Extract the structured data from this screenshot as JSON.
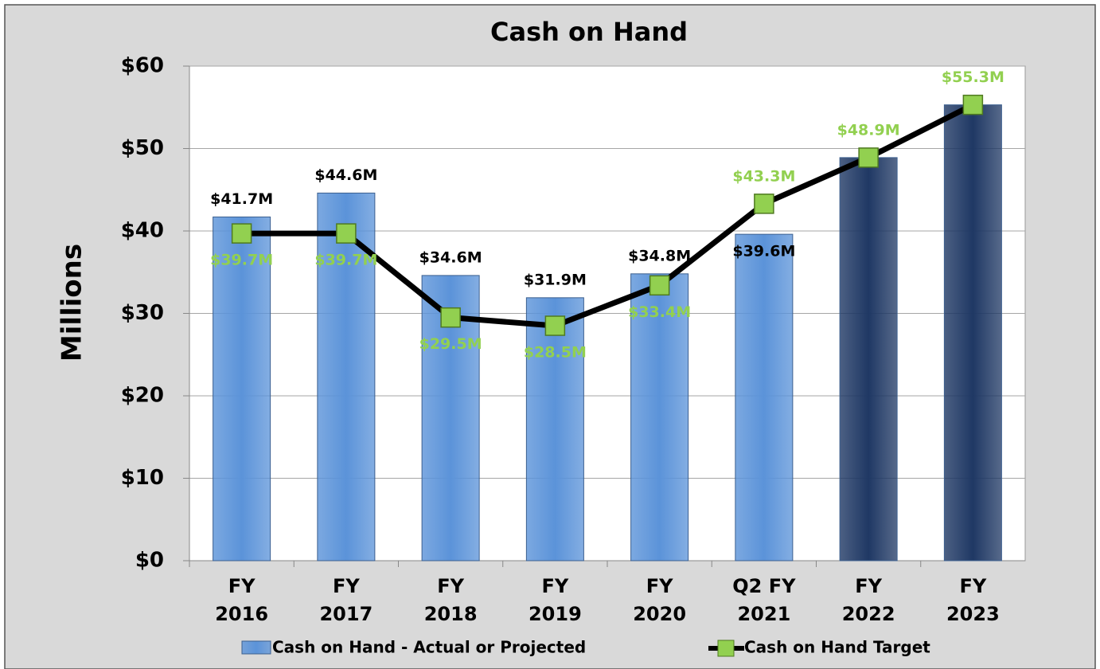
{
  "chart_data": {
    "type": "bar",
    "title": "Cash on Hand",
    "y_label": "Millions",
    "categories": [
      "FY 2016",
      "FY 2017",
      "FY 2018",
      "FY 2019",
      "FY 2020",
      "Q2 FY 2021",
      "FY 2022",
      "FY 2023"
    ],
    "ylim": [
      0,
      60
    ],
    "yticks": [
      {
        "value": 0,
        "label": "$0"
      },
      {
        "value": 10,
        "label": "$10"
      },
      {
        "value": 20,
        "label": "$20"
      },
      {
        "value": 30,
        "label": "$30"
      },
      {
        "value": 40,
        "label": "$40"
      },
      {
        "value": 50,
        "label": "$50"
      },
      {
        "value": 60,
        "label": "$60"
      }
    ],
    "grid": true,
    "series": [
      {
        "name": "Cash on Hand - Actual or Projected",
        "type": "bar",
        "color": "#5b93d9",
        "colors": [
          "#5b93d9",
          "#5b93d9",
          "#5b93d9",
          "#5b93d9",
          "#5b93d9",
          "#5b93d9",
          "#1f3864",
          "#1f3864"
        ],
        "values": [
          41.7,
          44.6,
          34.6,
          31.9,
          34.8,
          39.6,
          48.9,
          55.3
        ],
        "value_labels": [
          "$41.7M",
          "$44.6M",
          "$34.6M",
          "$31.9M",
          "$34.8M",
          "$39.6M",
          null,
          null
        ]
      },
      {
        "name": "Cash on Hand Target",
        "type": "line",
        "color": "#000000",
        "marker_color": "#92d050",
        "values": [
          39.7,
          39.7,
          29.5,
          28.5,
          33.4,
          43.3,
          48.9,
          55.3
        ],
        "value_labels": [
          "$39.7M",
          "$39.7M",
          "$29.5M",
          "$28.5M",
          "$33.4M",
          "$43.3M",
          "$48.9M",
          "$55.3M"
        ]
      }
    ]
  }
}
